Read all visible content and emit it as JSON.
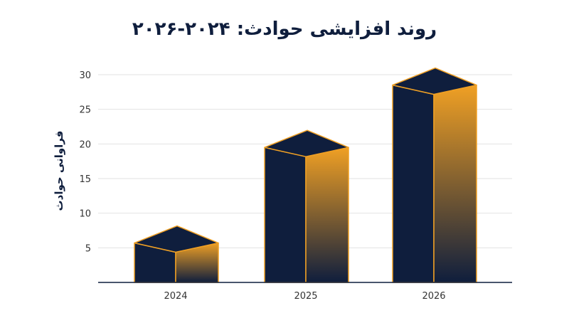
{
  "chart_data": {
    "type": "bar",
    "title": "روند افزایشی حوادث: ۲۰۲۴-۲۰۲۶",
    "xlabel": "",
    "ylabel": "فراوانی حوادث",
    "categories": [
      "2024",
      "2025",
      "2026"
    ],
    "values": [
      5.7,
      19.5,
      28.5
    ],
    "ylim": [
      0,
      30
    ],
    "yticks": [
      5,
      10,
      15,
      20,
      25,
      30
    ],
    "ytick_labels": [
      "5",
      "10",
      "15",
      "20",
      "25",
      "30"
    ],
    "grid": true,
    "colors": {
      "front": "#0f1e3d",
      "top": "#0f1e3d",
      "side_top": "#f0a024",
      "side_bottom": "#0f1e3d",
      "edge": "#f0a024",
      "grid": "#e2e2e2",
      "axis": "#0f1e3d"
    }
  }
}
